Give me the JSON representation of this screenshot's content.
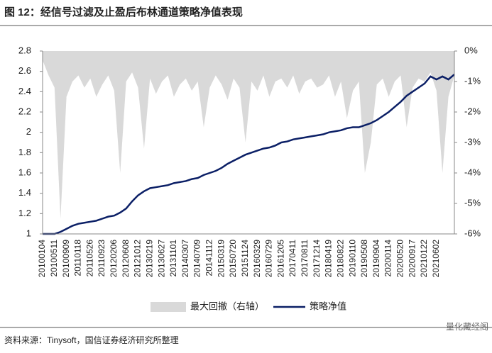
{
  "chart_data": {
    "type": "area-line",
    "title": "图 12：经信号过滤及止盈后布林通道策略净值表现",
    "source": "资料来源：Tinysoft，国信证券经济研究所整理",
    "watermark": "量化藏经阁",
    "categories": [
      "20100104",
      null,
      "20100511",
      null,
      "20100909",
      null,
      "20110118",
      null,
      "20110526",
      null,
      "20110923",
      null,
      "20120206",
      null,
      "20120608",
      null,
      "20121012",
      null,
      "20130219",
      null,
      "20130627",
      null,
      "20131101",
      null,
      "20140307",
      null,
      "20140709",
      null,
      "20141112",
      null,
      "20150319",
      null,
      "20150720",
      null,
      "20151124",
      null,
      "20160329",
      null,
      "20160729",
      null,
      "20161205",
      null,
      "20170411",
      null,
      "20170811",
      null,
      "20171214",
      null,
      "20180419",
      null,
      "20180822",
      null,
      "20190110",
      null,
      "20190508",
      null,
      "20190904",
      null,
      "20200114",
      null,
      "20200520",
      null,
      "20200917",
      null,
      "20210122",
      null,
      "20210602",
      null,
      null,
      null
    ],
    "series": [
      {
        "name": "最大回撤（右轴）",
        "color": "#d9d9d9",
        "axis": "y2",
        "values": [
          -0.3,
          -0.8,
          -1.2,
          -5.5,
          -1.5,
          -1.0,
          -0.8,
          -1.2,
          -0.9,
          -1.5,
          -1.1,
          -0.8,
          -1.3,
          -4.0,
          -1.0,
          -0.7,
          -1.2,
          -3.2,
          -0.9,
          -1.4,
          -1.0,
          -0.8,
          -1.5,
          -1.1,
          -0.9,
          -1.3,
          -1.0,
          -2.5,
          -1.2,
          -0.8,
          -1.1,
          -1.6,
          -0.9,
          -1.2,
          -3.0,
          -1.0,
          -1.3,
          -0.8,
          -1.5,
          -1.0,
          -0.9,
          -1.2,
          -0.8,
          -1.4,
          -1.0,
          -0.9,
          -1.2,
          -1.1,
          -0.8,
          -1.5,
          -1.0,
          -2.2,
          -1.3,
          -1.0,
          -4.0,
          -3.0,
          -1.1,
          -0.9,
          -1.5,
          -1.0,
          -0.8,
          -2.5,
          -1.2,
          -0.9,
          -1.0,
          -0.7,
          -1.3,
          -4.0,
          -1.5,
          -0.8
        ]
      },
      {
        "name": "策略净值",
        "color": "#0b1f66",
        "axis": "y",
        "values": [
          1.0,
          1.0,
          1.0,
          1.02,
          1.05,
          1.08,
          1.1,
          1.11,
          1.12,
          1.13,
          1.15,
          1.17,
          1.18,
          1.21,
          1.25,
          1.32,
          1.38,
          1.42,
          1.45,
          1.46,
          1.47,
          1.48,
          1.5,
          1.51,
          1.52,
          1.54,
          1.55,
          1.58,
          1.6,
          1.62,
          1.65,
          1.69,
          1.72,
          1.75,
          1.78,
          1.8,
          1.82,
          1.84,
          1.85,
          1.87,
          1.9,
          1.91,
          1.93,
          1.94,
          1.95,
          1.96,
          1.97,
          1.98,
          2.0,
          2.01,
          2.02,
          2.04,
          2.05,
          2.05,
          2.07,
          2.09,
          2.12,
          2.16,
          2.2,
          2.25,
          2.3,
          2.36,
          2.4,
          2.44,
          2.48,
          2.55,
          2.52,
          2.55,
          2.52,
          2.57
        ]
      }
    ],
    "ylim": [
      1,
      2.8
    ],
    "yticks": [
      1,
      1.2,
      1.4,
      1.6,
      1.8,
      2,
      2.2,
      2.4,
      2.6,
      2.8
    ],
    "y2lim": [
      -6,
      0
    ],
    "y2ticks": [
      {
        "value": 0,
        "label": "0%"
      },
      {
        "value": -1,
        "label": "-1%"
      },
      {
        "value": -2,
        "label": "-2%"
      },
      {
        "value": -3,
        "label": "-3%"
      },
      {
        "value": -4,
        "label": "-4%"
      },
      {
        "value": -5,
        "label": "-5%"
      },
      {
        "value": -6,
        "label": "-6%"
      }
    ],
    "legend": "bottom"
  }
}
